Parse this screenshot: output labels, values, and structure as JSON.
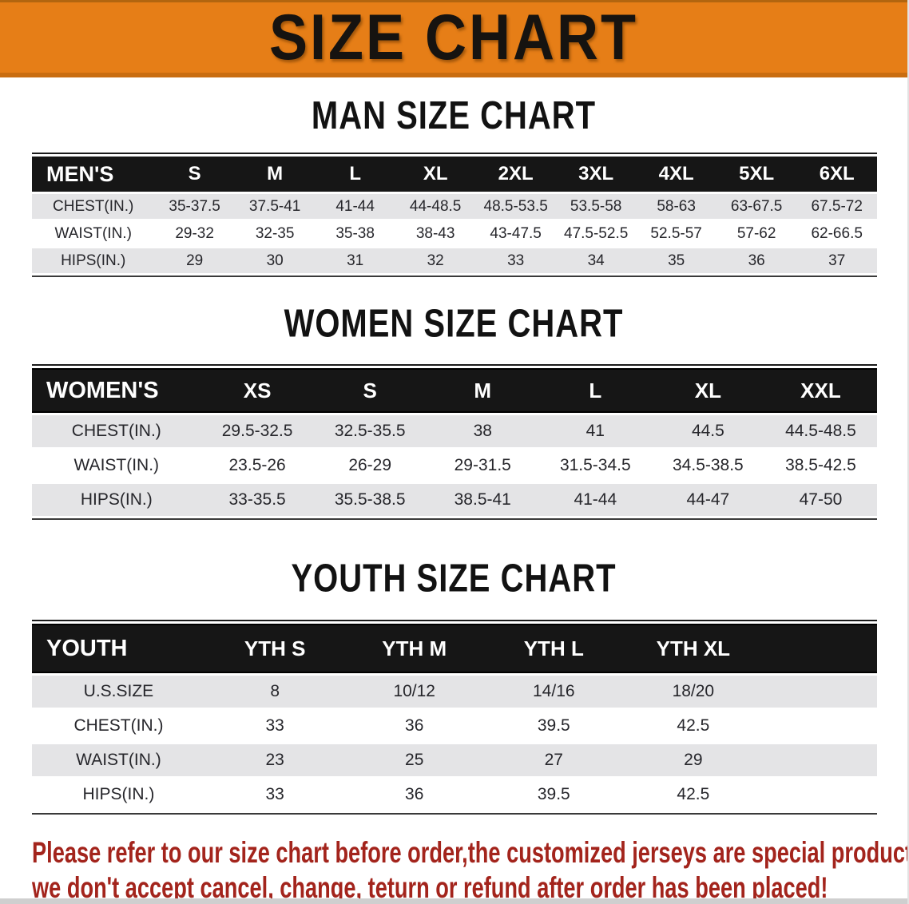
{
  "banner": {
    "title": "SIZE CHART"
  },
  "colors": {
    "banner_orange": "#e67e17",
    "header_black": "#161616",
    "row_gray": "#e4e4e6",
    "row_white": "#ffffff",
    "table_text": "#26262b",
    "disclaimer_red": "#a3241c"
  },
  "sections": [
    {
      "id": "men",
      "title": "MAN SIZE CHART",
      "table": {
        "header": [
          "MEN'S",
          "S",
          "M",
          "L",
          "XL",
          "2XL",
          "3XL",
          "4XL",
          "5XL",
          "6XL"
        ],
        "rows": [
          {
            "label": "CHEST(IN.)",
            "cells": [
              "35-37.5",
              "37.5-41",
              "41-44",
              "44-48.5",
              "48.5-53.5",
              "53.5-58",
              "58-63",
              "63-67.5",
              "67.5-72"
            ]
          },
          {
            "label": "WAIST(IN.)",
            "cells": [
              "29-32",
              "32-35",
              "35-38",
              "38-43",
              "43-47.5",
              "47.5-52.5",
              "52.5-57",
              "57-62",
              "62-66.5"
            ]
          },
          {
            "label": "HIPS(IN.)",
            "cells": [
              "29",
              "30",
              "31",
              "32",
              "33",
              "34",
              "35",
              "36",
              "37"
            ]
          }
        ],
        "trailing_empty_column": false
      }
    },
    {
      "id": "women",
      "title": "WOMEN SIZE CHART",
      "table": {
        "header": [
          "WOMEN'S",
          "XS",
          "S",
          "M",
          "L",
          "XL",
          "XXL"
        ],
        "rows": [
          {
            "label": "CHEST(IN.)",
            "cells": [
              "29.5-32.5",
              "32.5-35.5",
              "38",
              "41",
              "44.5",
              "44.5-48.5"
            ]
          },
          {
            "label": "WAIST(IN.)",
            "cells": [
              "23.5-26",
              "26-29",
              "29-31.5",
              "31.5-34.5",
              "34.5-38.5",
              "38.5-42.5"
            ]
          },
          {
            "label": "HIPS(IN.)",
            "cells": [
              "33-35.5",
              "35.5-38.5",
              "38.5-41",
              "41-44",
              "44-47",
              "47-50"
            ]
          }
        ],
        "trailing_empty_column": false
      }
    },
    {
      "id": "youth",
      "title": "YOUTH SIZE CHART",
      "table": {
        "header": [
          "YOUTH",
          "YTH S",
          "YTH M",
          "YTH L",
          "YTH XL"
        ],
        "rows": [
          {
            "label": "U.S.SIZE",
            "cells": [
              "8",
              "10/12",
              "14/16",
              "18/20"
            ]
          },
          {
            "label": "CHEST(IN.)",
            "cells": [
              "33",
              "36",
              "39.5",
              "42.5"
            ]
          },
          {
            "label": "WAIST(IN.)",
            "cells": [
              "23",
              "25",
              "27",
              "29"
            ]
          },
          {
            "label": "HIPS(IN.)",
            "cells": [
              "33",
              "36",
              "39.5",
              "42.5"
            ]
          }
        ],
        "trailing_empty_column": true
      }
    }
  ],
  "disclaimer": {
    "line1": "Please refer to our size chart before order,the customized jerseys are special products,",
    "line2": "we don't accept cancel, change, teturn or refund after order has been placed!"
  }
}
